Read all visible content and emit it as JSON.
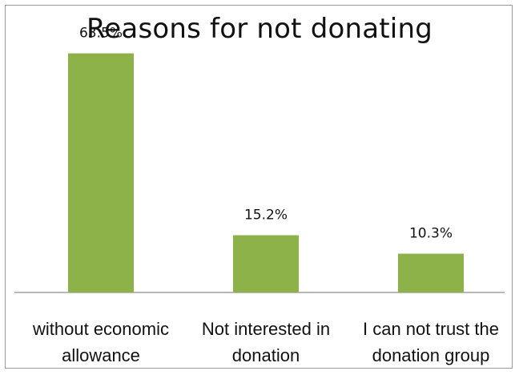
{
  "chart_data": {
    "type": "bar",
    "title": "Reasons for not donating",
    "categories": [
      [
        "without economic",
        "allowance"
      ],
      [
        "Not interested in",
        "donation"
      ],
      [
        "I can not trust the",
        "donation group"
      ]
    ],
    "values": [
      63.5,
      15.2,
      10.3
    ],
    "value_labels": [
      "63.5%",
      "15.2%",
      "10.3%"
    ],
    "ylim": [
      0,
      70
    ],
    "grid": false,
    "bar_color": "#8db24a"
  }
}
